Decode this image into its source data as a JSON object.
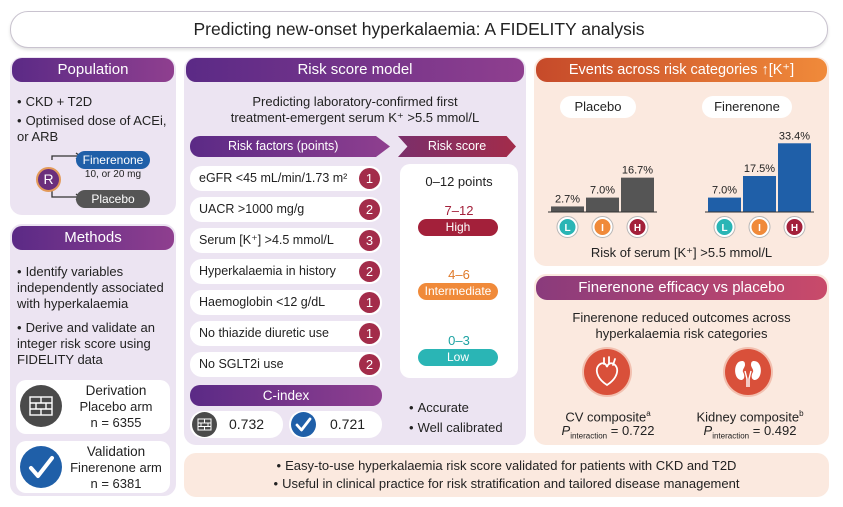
{
  "title": "Predicting new-onset hyperkalaemia: A FIDELITY analysis",
  "population": {
    "header": "Population",
    "bullets": [
      "CKD + T2D",
      "Optimised dose of ACEi, or ARB"
    ],
    "randomize_letter": "R",
    "arm1": "Finerenone",
    "arm1_dose": "10, or 20 mg",
    "arm2": "Placebo"
  },
  "methods": {
    "header": "Methods",
    "bullets": [
      "Identify variables independently associated with hyperkalaemia",
      "Derive and validate an integer risk score using FIDELITY data"
    ],
    "derivation": {
      "title": "Derivation",
      "arm": "Placebo arm",
      "n": "n = 6355"
    },
    "validation": {
      "title": "Validation",
      "arm": "Finerenone arm",
      "n": "n = 6381"
    }
  },
  "risk_model": {
    "header": "Risk score model",
    "subtitle_line1": "Predicting laboratory-confirmed first",
    "subtitle_line2": "treatment-emergent serum K⁺ >5.5 mmol/L",
    "factors_header": "Risk factors (points)",
    "score_header": "Risk score",
    "factors": [
      {
        "label": "eGFR <45 mL/min/1.73 m²",
        "points": "1"
      },
      {
        "label": "UACR >1000 mg/g",
        "points": "2"
      },
      {
        "label": "Serum [K⁺] >4.5 mmol/L",
        "points": "3"
      },
      {
        "label": "Hyperkalaemia in history",
        "points": "2"
      },
      {
        "label": "Haemoglobin <12 g/dL",
        "points": "1"
      },
      {
        "label": "No thiazide diuretic use",
        "points": "1"
      },
      {
        "label": "No SGLT2i use",
        "points": "2"
      }
    ],
    "score_range": "0–12 points",
    "categories": [
      {
        "range": "7–12",
        "label": "High",
        "color": "#a3203a"
      },
      {
        "range": "4–6",
        "label": "Intermediate",
        "color": "#f08a3a"
      },
      {
        "range": "0–3",
        "label": "Low",
        "color": "#2ab5b5"
      }
    ],
    "cindex_header": "C-index",
    "cindex_derivation": "0.732",
    "cindex_validation": "0.721",
    "notes": [
      "Accurate",
      "Well calibrated"
    ]
  },
  "events": {
    "header": "Events across risk categories ↑[K⁺]",
    "placebo_label": "Placebo",
    "finerenone_label": "Finerenone",
    "xlabel": "Risk of serum [K⁺] >5.5 mmol/L",
    "category_letters": [
      "L",
      "I",
      "H"
    ]
  },
  "chart_data": {
    "type": "bar",
    "categories": [
      "L",
      "I",
      "H"
    ],
    "series": [
      {
        "name": "Placebo",
        "values": [
          2.7,
          7.0,
          16.7
        ],
        "labels": [
          "2.7%",
          "7.0%",
          "16.7%"
        ],
        "color": "#555555"
      },
      {
        "name": "Finerenone",
        "values": [
          7.0,
          17.5,
          33.4
        ],
        "labels": [
          "7.0%",
          "17.5%",
          "33.4%"
        ],
        "color": "#1f5fa8"
      }
    ],
    "xlabel": "Risk of serum [K⁺] >5.5 mmol/L",
    "ylim": [
      0,
      35
    ]
  },
  "efficacy": {
    "header": "Finerenone efficacy vs placebo",
    "subtitle_line1": "Finerenone reduced outcomes across",
    "subtitle_line2": "hyperkalaemia risk categories",
    "cv_label": "CV composite",
    "cv_sup": "a",
    "cv_p": "= 0.722",
    "kidney_label": "Kidney composite",
    "kidney_sup": "b",
    "kidney_p": "= 0.492",
    "p_letter": "P",
    "p_sub": "interaction"
  },
  "conclusion": [
    "Easy-to-use hyperkalaemia risk score validated for patients with CKD and T2D",
    "Useful in clinical practice for risk stratification and tailored disease management"
  ],
  "colors": {
    "purple": "#5b2a86",
    "orange": "#f08a3a",
    "high": "#a3203a",
    "low_teal": "#2ab5b5",
    "placebo_bar": "#555555",
    "finerenone_bar": "#1f5fa8"
  }
}
